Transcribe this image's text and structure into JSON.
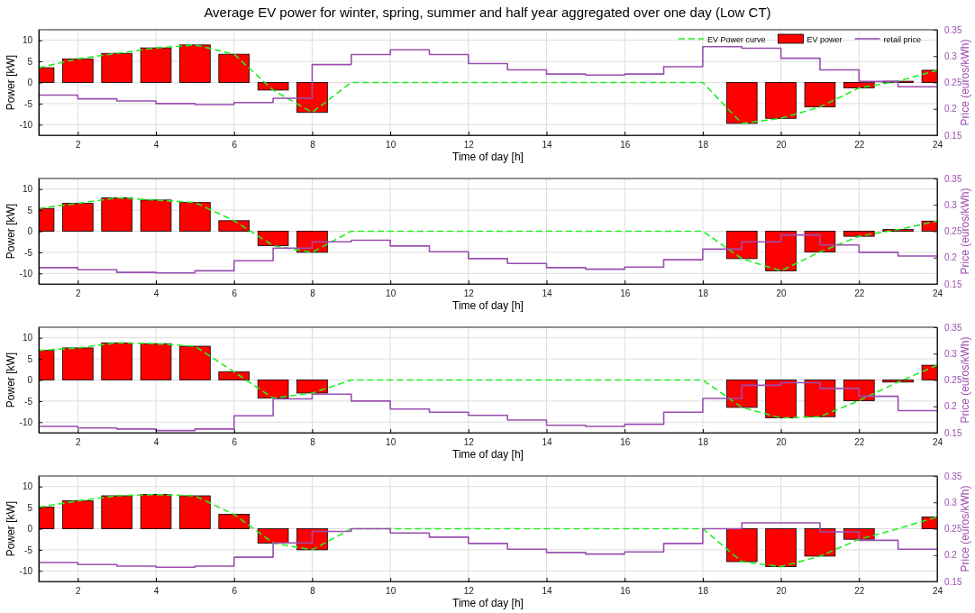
{
  "chart_data": [
    {
      "type": "bar",
      "title": "Average EV power for winter, spring, summer and half year aggregated over one day (Low CT)",
      "xlabel": "Time of day [h]",
      "ylabel": "Power [kW]",
      "y2label": "Price (euros/kWh)",
      "xlim": [
        1,
        24
      ],
      "xticks": [
        2,
        4,
        6,
        8,
        10,
        12,
        14,
        16,
        18,
        20,
        22,
        24
      ],
      "ylim": [
        -12.5,
        12.5
      ],
      "yticks": [
        -10,
        -5,
        0,
        5,
        10
      ],
      "y2lim": [
        0.15,
        0.35
      ],
      "y2ticks": [
        0.15,
        0.2,
        0.25,
        0.3,
        0.35
      ],
      "grid": true,
      "legend": "top right",
      "x": [
        1,
        2,
        3,
        4,
        5,
        6,
        7,
        8,
        9,
        10,
        11,
        12,
        13,
        14,
        15,
        16,
        17,
        18,
        19,
        20,
        21,
        22,
        23,
        24
      ],
      "series": [
        {
          "type": "line",
          "name": "EV Power curve",
          "color": "#22ee22",
          "line_style": "dashed",
          "values": [
            3.5,
            5.6,
            6.9,
            8.2,
            8.9,
            6.7,
            -1.8,
            -7.1,
            0,
            0,
            0,
            0,
            0,
            0,
            0,
            0,
            0,
            0,
            -9.7,
            -8.5,
            -5.8,
            -1.3,
            0.3,
            2.9
          ]
        },
        {
          "name": "EV power",
          "color": "#ff0000",
          "values": [
            3.5,
            5.6,
            6.9,
            8.2,
            8.9,
            6.7,
            -1.8,
            -7.1,
            0,
            0,
            0,
            0,
            0,
            0,
            0,
            0,
            0,
            0,
            -9.7,
            -8.5,
            -5.8,
            -1.3,
            0.3,
            2.9
          ]
        },
        {
          "type": "step",
          "name": "retail price",
          "color": "#9b4fb0",
          "axis": "y2",
          "values": [
            0.226,
            0.219,
            0.215,
            0.21,
            0.208,
            0.212,
            0.22,
            0.284,
            0.303,
            0.312,
            0.303,
            0.286,
            0.274,
            0.266,
            0.264,
            0.266,
            0.28,
            0.318,
            0.315,
            0.296,
            0.274,
            0.252,
            0.242,
            0.242
          ]
        }
      ]
    },
    {
      "type": "bar",
      "xlabel": "Time of day [h]",
      "ylabel": "Power [kW]",
      "y2label": "Price (euros/kWh)",
      "xlim": [
        1,
        24
      ],
      "xticks": [
        2,
        4,
        6,
        8,
        10,
        12,
        14,
        16,
        18,
        20,
        22,
        24
      ],
      "ylim": [
        -12.5,
        12.5
      ],
      "yticks": [
        -10,
        -5,
        0,
        5,
        10
      ],
      "y2lim": [
        0.15,
        0.35
      ],
      "y2ticks": [
        0.15,
        0.2,
        0.25,
        0.3,
        0.35
      ],
      "grid": true,
      "x": [
        1,
        2,
        3,
        4,
        5,
        6,
        7,
        8,
        9,
        10,
        11,
        12,
        13,
        14,
        15,
        16,
        17,
        18,
        19,
        20,
        21,
        22,
        23,
        24
      ],
      "series": [
        {
          "type": "line",
          "color": "#22ee22",
          "line_style": "dashed",
          "values": [
            5.4,
            6.6,
            7.9,
            7.4,
            6.8,
            2.5,
            -3.4,
            -5,
            0,
            0,
            0,
            0,
            0,
            0,
            0,
            0,
            0,
            0,
            -6.5,
            -9.4,
            -4.9,
            -1.2,
            0.4,
            2.4
          ]
        },
        {
          "color": "#ff0000",
          "values": [
            5.4,
            6.6,
            7.9,
            7.4,
            6.8,
            2.5,
            -3.4,
            -5,
            0,
            0,
            0,
            0,
            0,
            0,
            0,
            0,
            0,
            0,
            -6.5,
            -9.4,
            -4.9,
            -1.2,
            0.4,
            2.4
          ]
        },
        {
          "type": "step",
          "color": "#9b4fb0",
          "axis": "y2",
          "values": [
            0.181,
            0.177,
            0.172,
            0.171,
            0.175,
            0.194,
            0.218,
            0.23,
            0.233,
            0.222,
            0.211,
            0.198,
            0.189,
            0.181,
            0.178,
            0.182,
            0.196,
            0.216,
            0.23,
            0.243,
            0.224,
            0.21,
            0.203,
            0.203
          ]
        }
      ]
    },
    {
      "type": "bar",
      "xlabel": "Time of day [h]",
      "ylabel": "Power [kW]",
      "y2label": "Price (euros/kWh)",
      "xlim": [
        1,
        24
      ],
      "xticks": [
        2,
        4,
        6,
        8,
        10,
        12,
        14,
        16,
        18,
        20,
        22,
        24
      ],
      "ylim": [
        -12.5,
        12.5
      ],
      "yticks": [
        -10,
        -5,
        0,
        5,
        10
      ],
      "y2lim": [
        0.15,
        0.35
      ],
      "y2ticks": [
        0.15,
        0.2,
        0.25,
        0.3,
        0.35
      ],
      "grid": true,
      "x": [
        1,
        2,
        3,
        4,
        5,
        6,
        7,
        8,
        9,
        10,
        11,
        12,
        13,
        14,
        15,
        16,
        17,
        18,
        19,
        20,
        21,
        22,
        23,
        24
      ],
      "series": [
        {
          "type": "line",
          "color": "#22ee22",
          "line_style": "dashed",
          "values": [
            7,
            7.6,
            8.8,
            8.6,
            8,
            1.9,
            -4.3,
            -3.1,
            0,
            0,
            0,
            0,
            0,
            0,
            0,
            0,
            0,
            0,
            -6.5,
            -9,
            -8.7,
            -4.9,
            -0.5,
            3.5
          ]
        },
        {
          "color": "#ff0000",
          "values": [
            7,
            7.6,
            8.8,
            8.6,
            8,
            1.9,
            -4.3,
            -3.1,
            0,
            0,
            0,
            0,
            0,
            0,
            0,
            0,
            0,
            0,
            -6.5,
            -9,
            -8.7,
            -4.9,
            -0.5,
            3.5
          ]
        },
        {
          "type": "step",
          "color": "#9b4fb0",
          "axis": "y2",
          "values": [
            0.162,
            0.159,
            0.157,
            0.154,
            0.157,
            0.182,
            0.214,
            0.223,
            0.21,
            0.195,
            0.189,
            0.183,
            0.174,
            0.164,
            0.162,
            0.166,
            0.189,
            0.215,
            0.24,
            0.245,
            0.234,
            0.219,
            0.192,
            0.192
          ]
        }
      ]
    },
    {
      "type": "bar",
      "xlabel": "Time of day [h]",
      "ylabel": "Power [kW]",
      "y2label": "Price (euros/kWh)",
      "xlim": [
        1,
        24
      ],
      "xticks": [
        2,
        4,
        6,
        8,
        10,
        12,
        14,
        16,
        18,
        20,
        22,
        24
      ],
      "ylim": [
        -12.5,
        12.5
      ],
      "yticks": [
        -10,
        -5,
        0,
        5,
        10
      ],
      "y2lim": [
        0.15,
        0.35
      ],
      "y2ticks": [
        0.15,
        0.2,
        0.25,
        0.3,
        0.35
      ],
      "grid": true,
      "x": [
        1,
        2,
        3,
        4,
        5,
        6,
        7,
        8,
        9,
        10,
        11,
        12,
        13,
        14,
        15,
        16,
        17,
        18,
        19,
        20,
        21,
        22,
        23,
        24
      ],
      "series": [
        {
          "type": "line",
          "color": "#22ee22",
          "line_style": "dashed",
          "values": [
            5.1,
            6.6,
            7.8,
            8.1,
            7.8,
            3.4,
            -3.4,
            -5,
            0,
            0,
            0,
            0,
            0,
            0,
            0,
            0,
            0,
            0,
            -7.8,
            -9,
            -6.5,
            -2.5,
            0,
            2.8
          ]
        },
        {
          "color": "#ff0000",
          "values": [
            5.1,
            6.6,
            7.8,
            8.1,
            7.8,
            3.4,
            -3.4,
            -5,
            0,
            0,
            0,
            0,
            0,
            0,
            0,
            0,
            0,
            0,
            -7.8,
            -9,
            -6.5,
            -2.5,
            0,
            2.8
          ]
        },
        {
          "type": "step",
          "color": "#9b4fb0",
          "axis": "y2",
          "values": [
            0.186,
            0.182,
            0.179,
            0.177,
            0.179,
            0.196,
            0.223,
            0.245,
            0.25,
            0.242,
            0.234,
            0.222,
            0.211,
            0.205,
            0.202,
            0.206,
            0.222,
            0.25,
            0.261,
            0.261,
            0.244,
            0.228,
            0.211,
            0.211
          ]
        }
      ]
    }
  ]
}
